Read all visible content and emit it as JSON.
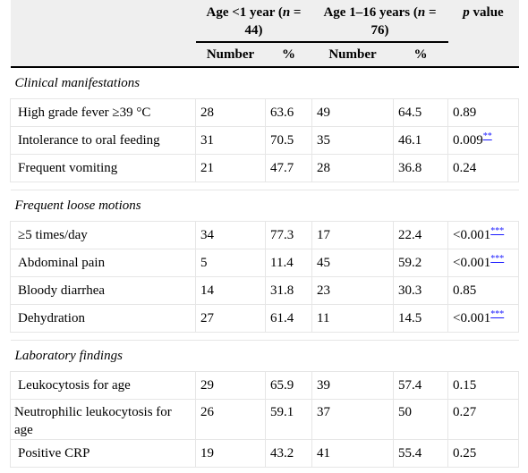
{
  "header": {
    "group1_a": "Age <1 year (",
    "group1_n": "n",
    "group1_b": " = 44)",
    "group2_a": "Age 1–16 years (",
    "group2_n": "n",
    "group2_b": " = 76)",
    "pvalue_p": "p",
    "pvalue_rest": " value",
    "number": "Number",
    "percent": "%"
  },
  "sections": [
    {
      "title": "Clinical manifestations",
      "rows": [
        {
          "label": "High grade fever ≥39 °C",
          "n1": "28",
          "p1": "63.6",
          "n2": "49",
          "p2": "64.5",
          "pv": "0.89",
          "fn": ""
        },
        {
          "label": "Intolerance to oral feeding",
          "n1": "31",
          "p1": "70.5",
          "n2": "35",
          "p2": "46.1",
          "pv": "0.009",
          "fn": "**"
        },
        {
          "label": "Frequent vomiting",
          "n1": "21",
          "p1": "47.7",
          "n2": "28",
          "p2": "36.8",
          "pv": "0.24",
          "fn": ""
        }
      ]
    },
    {
      "title": "Frequent loose motions",
      "rows": [
        {
          "label": "≥5 times/day",
          "n1": "34",
          "p1": "77.3",
          "n2": "17",
          "p2": "22.4",
          "pv": "<0.001",
          "fn": "***"
        },
        {
          "label": "Abdominal pain",
          "n1": "5",
          "p1": "11.4",
          "n2": "45",
          "p2": "59.2",
          "pv": "<0.001",
          "fn": "***"
        },
        {
          "label": "Bloody diarrhea",
          "n1": "14",
          "p1": "31.8",
          "n2": "23",
          "p2": "30.3",
          "pv": "0.85",
          "fn": ""
        },
        {
          "label": "Dehydration",
          "n1": "27",
          "p1": "61.4",
          "n2": "11",
          "p2": "14.5",
          "pv": "<0.001",
          "fn": "***"
        }
      ]
    },
    {
      "title": "Laboratory findings",
      "rows": [
        {
          "label": "Leukocytosis for age",
          "n1": "29",
          "p1": "65.9",
          "n2": "39",
          "p2": "57.4",
          "pv": "0.15",
          "fn": ""
        },
        {
          "label": "Neutrophilic leukocytosis for age",
          "n1": "26",
          "p1": "59.1",
          "n2": "37",
          "p2": "50",
          "pv": "0.27",
          "fn": ""
        },
        {
          "label": "Positive CRP",
          "n1": "19",
          "p1": "43.2",
          "n2": "41",
          "p2": "55.4",
          "pv": "0.25",
          "fn": ""
        }
      ]
    }
  ]
}
